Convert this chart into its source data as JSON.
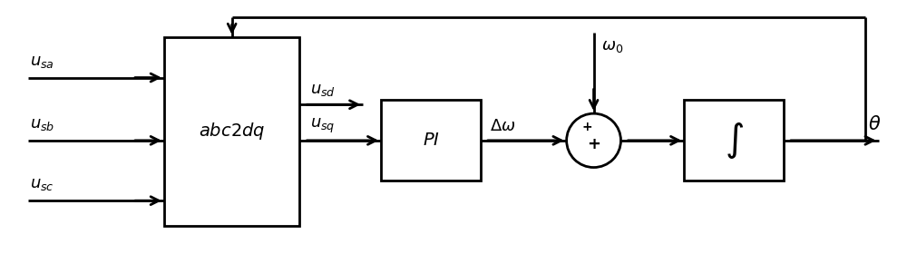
{
  "bg_color": "#ffffff",
  "line_color": "#000000",
  "lw": 2.0,
  "labels": {
    "usa": "$\\mathit{u}_{sa}$",
    "usb": "$\\mathit{u}_{sb}$",
    "usc": "$\\mathit{u}_{sc}$",
    "usd": "$\\mathit{u}_{sd}$",
    "usq": "$\\mathit{u}_{sq}$",
    "abc2dq": "$\\mathit{abc2dq}$",
    "PI": "$\\mathit{PI}$",
    "INT": "$\\int$",
    "delta_omega": "$\\Delta\\omega$",
    "omega0": "$\\omega_0$",
    "theta": "$\\theta$"
  },
  "fontsize": 13
}
